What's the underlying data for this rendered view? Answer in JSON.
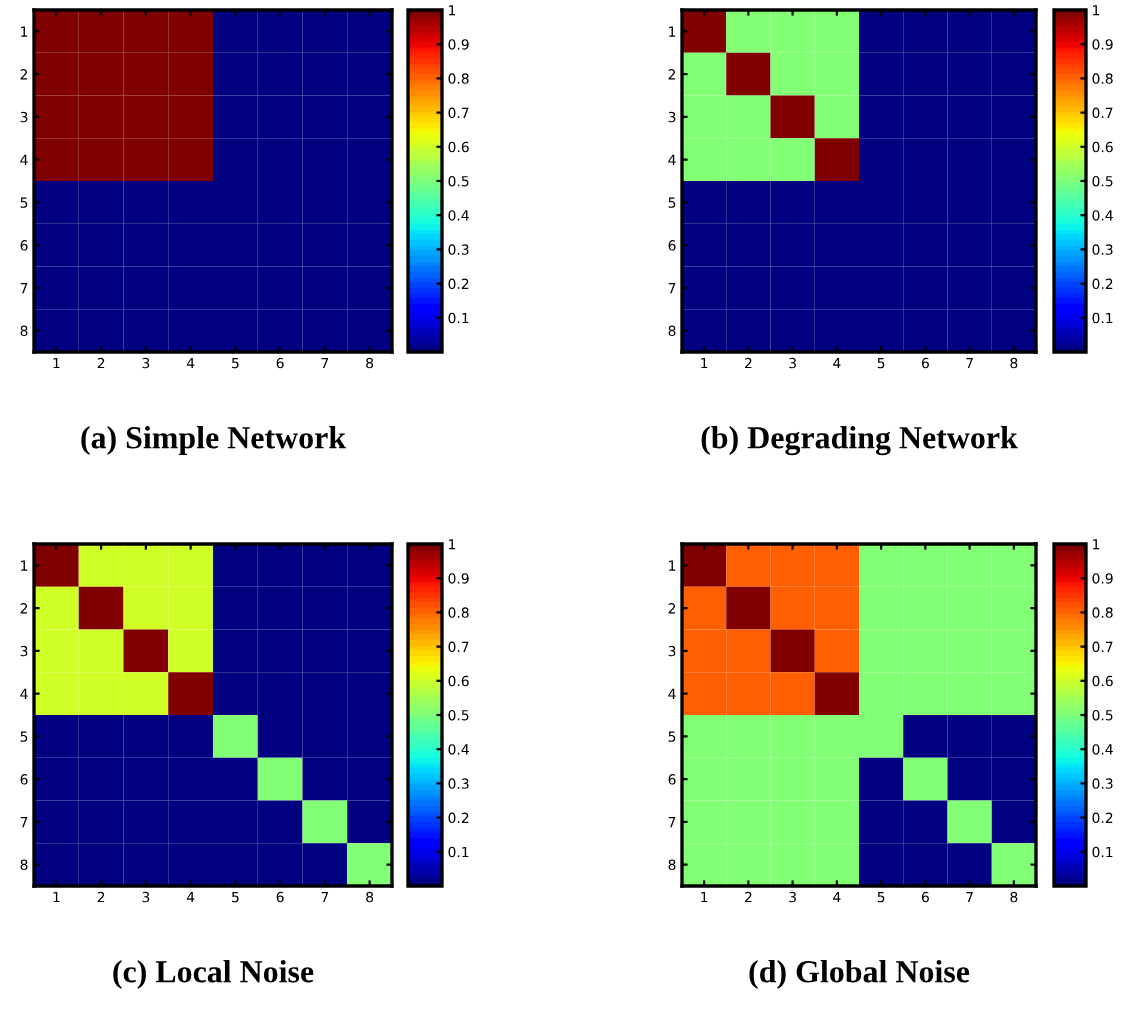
{
  "chart_data": [
    {
      "type": "heatmap",
      "title": "(a) Simple Network",
      "categories": [
        "1",
        "2",
        "3",
        "4",
        "5",
        "6",
        "7",
        "8"
      ],
      "y_categories": [
        "1",
        "2",
        "3",
        "4",
        "5",
        "6",
        "7",
        "8"
      ],
      "clim": [
        0,
        1
      ],
      "cticks": [
        0.1,
        0.2,
        0.3,
        0.4,
        0.5,
        0.6,
        0.7,
        0.8,
        0.9,
        1
      ],
      "cells": [
        [
          1,
          1,
          1,
          1,
          0,
          0,
          0,
          0
        ],
        [
          1,
          1,
          1,
          1,
          0,
          0,
          0,
          0
        ],
        [
          1,
          1,
          1,
          1,
          0,
          0,
          0,
          0
        ],
        [
          1,
          1,
          1,
          1,
          0,
          0,
          0,
          0
        ],
        [
          0,
          0,
          0,
          0,
          0,
          0,
          0,
          0
        ],
        [
          0,
          0,
          0,
          0,
          0,
          0,
          0,
          0
        ],
        [
          0,
          0,
          0,
          0,
          0,
          0,
          0,
          0
        ],
        [
          0,
          0,
          0,
          0,
          0,
          0,
          0,
          0
        ]
      ]
    },
    {
      "type": "heatmap",
      "title": "(b) Degrading Network",
      "categories": [
        "1",
        "2",
        "3",
        "4",
        "5",
        "6",
        "7",
        "8"
      ],
      "y_categories": [
        "1",
        "2",
        "3",
        "4",
        "5",
        "6",
        "7",
        "8"
      ],
      "clim": [
        0,
        1
      ],
      "cticks": [
        0.1,
        0.2,
        0.3,
        0.4,
        0.5,
        0.6,
        0.7,
        0.8,
        0.9,
        1
      ],
      "cells": [
        [
          1,
          0.5,
          0.5,
          0.5,
          0,
          0,
          0,
          0
        ],
        [
          0.5,
          1,
          0.5,
          0.5,
          0,
          0,
          0,
          0
        ],
        [
          0.5,
          0.5,
          1,
          0.5,
          0,
          0,
          0,
          0
        ],
        [
          0.5,
          0.5,
          0.5,
          1,
          0,
          0,
          0,
          0
        ],
        [
          0,
          0,
          0,
          0,
          0,
          0,
          0,
          0
        ],
        [
          0,
          0,
          0,
          0,
          0,
          0,
          0,
          0
        ],
        [
          0,
          0,
          0,
          0,
          0,
          0,
          0,
          0
        ],
        [
          0,
          0,
          0,
          0,
          0,
          0,
          0,
          0
        ]
      ]
    },
    {
      "type": "heatmap",
      "title": "(c) Local Noise",
      "categories": [
        "1",
        "2",
        "3",
        "4",
        "5",
        "6",
        "7",
        "8"
      ],
      "y_categories": [
        "1",
        "2",
        "3",
        "4",
        "5",
        "6",
        "7",
        "8"
      ],
      "clim": [
        0,
        1
      ],
      "cticks": [
        0.1,
        0.2,
        0.3,
        0.4,
        0.5,
        0.6,
        0.7,
        0.8,
        0.9,
        1
      ],
      "cells": [
        [
          1,
          0.6,
          0.6,
          0.6,
          0,
          0,
          0,
          0
        ],
        [
          0.6,
          1,
          0.6,
          0.6,
          0,
          0,
          0,
          0
        ],
        [
          0.6,
          0.6,
          1,
          0.6,
          0,
          0,
          0,
          0
        ],
        [
          0.6,
          0.6,
          0.6,
          1,
          0,
          0,
          0,
          0
        ],
        [
          0,
          0,
          0,
          0,
          0.5,
          0,
          0,
          0
        ],
        [
          0,
          0,
          0,
          0,
          0,
          0.5,
          0,
          0
        ],
        [
          0,
          0,
          0,
          0,
          0,
          0,
          0.5,
          0
        ],
        [
          0,
          0,
          0,
          0,
          0,
          0,
          0,
          0.5
        ]
      ]
    },
    {
      "type": "heatmap",
      "title": "(d) Global Noise",
      "categories": [
        "1",
        "2",
        "3",
        "4",
        "5",
        "6",
        "7",
        "8"
      ],
      "y_categories": [
        "1",
        "2",
        "3",
        "4",
        "5",
        "6",
        "7",
        "8"
      ],
      "clim": [
        0,
        1
      ],
      "cticks": [
        0.1,
        0.2,
        0.3,
        0.4,
        0.5,
        0.6,
        0.7,
        0.8,
        0.9,
        1
      ],
      "cells": [
        [
          1,
          0.8,
          0.8,
          0.8,
          0.5,
          0.5,
          0.5,
          0.5
        ],
        [
          0.8,
          1,
          0.8,
          0.8,
          0.5,
          0.5,
          0.5,
          0.5
        ],
        [
          0.8,
          0.8,
          1,
          0.8,
          0.5,
          0.5,
          0.5,
          0.5
        ],
        [
          0.8,
          0.8,
          0.8,
          1,
          0.5,
          0.5,
          0.5,
          0.5
        ],
        [
          0.5,
          0.5,
          0.5,
          0.5,
          0.5,
          0,
          0,
          0
        ],
        [
          0.5,
          0.5,
          0.5,
          0.5,
          0,
          0.5,
          0,
          0
        ],
        [
          0.5,
          0.5,
          0.5,
          0.5,
          0,
          0,
          0.5,
          0
        ],
        [
          0.5,
          0.5,
          0.5,
          0.5,
          0,
          0,
          0,
          0.5
        ]
      ]
    }
  ]
}
